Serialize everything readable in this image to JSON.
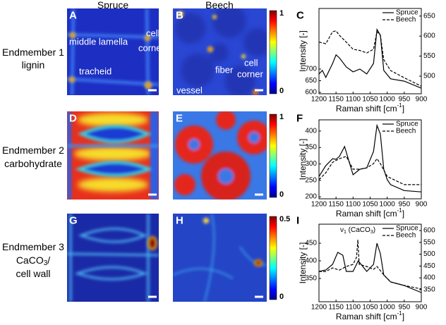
{
  "column_headers": [
    "Spruce",
    "Beech"
  ],
  "rows": [
    {
      "label": [
        "Endmember 1",
        "lignin"
      ],
      "panel_letters": [
        "A",
        "B",
        "C"
      ],
      "map_a_labels": [
        "middle lamella",
        "cell",
        "corner",
        "tracheid"
      ],
      "map_b_labels": [
        "cell",
        "fiber",
        "corner",
        "vessel"
      ],
      "colorbar": {
        "lim": [
          0,
          1
        ],
        "ticks": [
          0,
          1
        ]
      }
    },
    {
      "label": [
        "Endmember 2",
        "carbohydrate"
      ],
      "panel_letters": [
        "D",
        "E",
        "F"
      ],
      "colorbar": {
        "lim": [
          0,
          1
        ],
        "ticks": [
          0,
          1
        ]
      }
    },
    {
      "label": [
        "Endmember 3",
        [
          "CaCO",
          "3",
          "/"
        ],
        "cell wall"
      ],
      "panel_letters": [
        "G",
        "H",
        "I"
      ],
      "colorbar": {
        "lim": [
          0,
          0.5
        ],
        "ticks": [
          0,
          0.5
        ]
      }
    }
  ],
  "chart_data": [
    {
      "type": "line",
      "ylabel": "Intensity [-]",
      "xlabel": [
        "Raman shift [cm",
        "-1",
        "]"
      ],
      "xlim": [
        1200,
        900
      ],
      "xticks": [
        1200,
        1150,
        1100,
        1050,
        1000,
        950,
        900
      ],
      "ylim": [
        594,
        960
      ],
      "yticks": [
        600,
        650,
        700
      ],
      "y2lim": [
        456,
        669
      ],
      "y2ticks": [
        500,
        550,
        600,
        650
      ],
      "legend": "upper right",
      "series": [
        {
          "name": "Spruce",
          "color": "#000000",
          "linestyle": "solid",
          "axis": "y",
          "x": [
            1200,
            1190,
            1180,
            1160,
            1150,
            1140,
            1120,
            1100,
            1080,
            1060,
            1040,
            1030,
            1020,
            1010,
            990,
            950,
            900
          ],
          "values": [
            679,
            694,
            664,
            724,
            761,
            748,
            709,
            688,
            700,
            679,
            724,
            870,
            845,
            694,
            658,
            648,
            618
          ]
        },
        {
          "name": "Beech",
          "color": "#000000",
          "linestyle": "dashed",
          "axis": "y2",
          "x": [
            1200,
            1180,
            1160,
            1150,
            1140,
            1120,
            1100,
            1080,
            1060,
            1040,
            1030,
            1020,
            1010,
            990,
            950,
            900
          ],
          "values": [
            585,
            581,
            611,
            613,
            602,
            585,
            567,
            564,
            558,
            567,
            611,
            602,
            541,
            514,
            496,
            475
          ]
        }
      ]
    },
    {
      "type": "line",
      "ylabel": "Intensity [-]",
      "xlabel": [
        "Raman shift [cm",
        "-1",
        "]"
      ],
      "xlim": [
        1200,
        900
      ],
      "xticks": [
        1200,
        1150,
        1100,
        1050,
        1000,
        950,
        900
      ],
      "ylim": [
        194,
        434
      ],
      "yticks": [
        200,
        250,
        300,
        350,
        400
      ],
      "legend": "upper right",
      "series": [
        {
          "name": "Spruce",
          "color": "#000000",
          "linestyle": "solid",
          "axis": "y",
          "x": [
            1200,
            1180,
            1160,
            1150,
            1140,
            1125,
            1110,
            1100,
            1080,
            1060,
            1040,
            1030,
            1020,
            1010,
            1000,
            990,
            950,
            900
          ],
          "values": [
            262,
            295,
            316,
            314,
            323,
            353,
            301,
            267,
            284,
            288,
            338,
            417,
            391,
            284,
            252,
            237,
            219,
            215
          ]
        },
        {
          "name": "Beech",
          "color": "#000000",
          "linestyle": "dashed",
          "axis": "y",
          "x": [
            1200,
            1180,
            1160,
            1140,
            1120,
            1100,
            1080,
            1060,
            1040,
            1030,
            1020,
            1000,
            950,
            900
          ],
          "values": [
            252,
            273,
            305,
            316,
            323,
            284,
            284,
            288,
            301,
            316,
            301,
            262,
            237,
            237
          ]
        }
      ]
    },
    {
      "type": "line",
      "ylabel": "Intensity [-]",
      "xlabel": [
        "Raman shift [cm",
        "-1",
        "]"
      ],
      "xlim": [
        1200,
        900
      ],
      "xticks": [
        1200,
        1150,
        1100,
        1050,
        1000,
        950,
        900
      ],
      "ylim": [
        284,
        504
      ],
      "yticks": [
        350,
        400,
        450
      ],
      "y2lim": [
        299,
        627
      ],
      "y2ticks": [
        350,
        400,
        450,
        500,
        550,
        600
      ],
      "legend": "upper right",
      "annotation": [
        "ν",
        "1",
        " (CaCO",
        "3",
        ")"
      ],
      "series": [
        {
          "name": "Spruce",
          "color": "#000000",
          "linestyle": "solid",
          "axis": "y",
          "x": [
            1200,
            1180,
            1160,
            1145,
            1130,
            1120,
            1100,
            1090,
            1085,
            1060,
            1040,
            1030,
            1020,
            1010,
            990,
            950,
            900
          ],
          "values": [
            370,
            374,
            390,
            424,
            416,
            370,
            370,
            390,
            400,
            370,
            390,
            450,
            420,
            360,
            340,
            330,
            310
          ]
        },
        {
          "name": "Beech",
          "color": "#000000",
          "linestyle": "dashed",
          "axis": "y2",
          "x": [
            1200,
            1180,
            1160,
            1140,
            1120,
            1100,
            1090,
            1086,
            1082,
            1060,
            1040,
            1030,
            1010,
            990,
            950,
            900
          ],
          "values": [
            427,
            427,
            442,
            433,
            448,
            457,
            487,
            561,
            457,
            448,
            436,
            448,
            413,
            383,
            368,
            353
          ]
        }
      ]
    }
  ]
}
